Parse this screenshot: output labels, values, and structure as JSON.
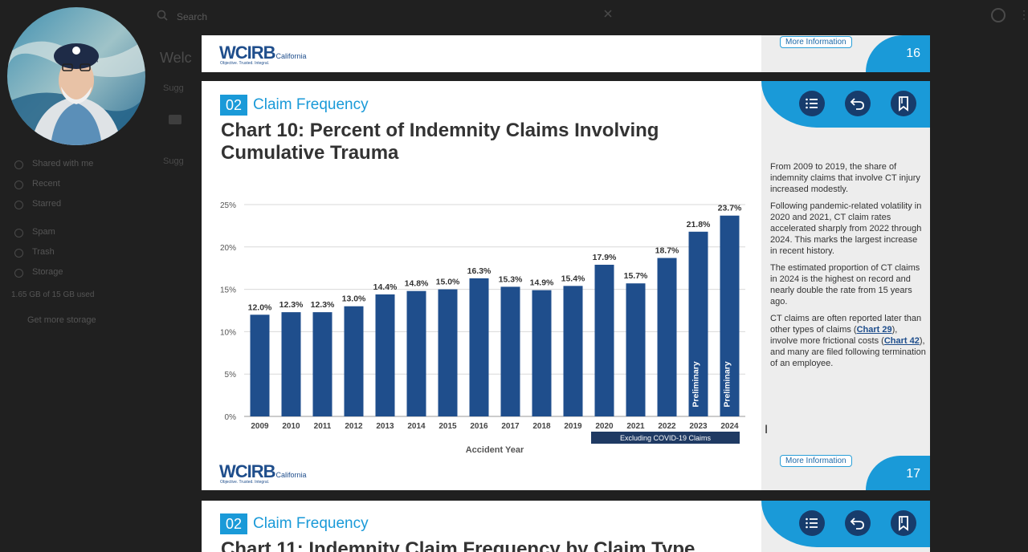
{
  "background_app": {
    "search_placeholder": "Search",
    "welcome": "Welc",
    "misc_1": "Sugg",
    "misc_2": "Sugg",
    "sidebar": [
      "Shared with me",
      "Recent",
      "Starred",
      "Spam",
      "Trash",
      "Storage"
    ],
    "storage_text": "1.65 GB of 15 GB used",
    "get_more": "Get more storage"
  },
  "brand": {
    "name": "WCIRB",
    "region": "California",
    "tagline": "Objective. Trusted. Integral."
  },
  "page16": {
    "more_info": "More Information",
    "page_number": "16"
  },
  "page17": {
    "section_number": "02",
    "section_title": "Claim Frequency",
    "title": "Chart 10: Percent of Indemnity Claims Involving Cumulative Trauma",
    "more_info": "More Information",
    "page_number": "17",
    "nav": [
      "list-icon",
      "back-icon",
      "bookmark-icon"
    ],
    "side_paragraphs": {
      "p1": "From 2009 to 2019, the share of indemnity claims that involve CT injury increased modestly.",
      "p2": "Following pandemic-related volatility in 2020 and 2021, CT claim rates accelerated sharply from 2022 through 2024. This marks the largest increase in recent history.",
      "p3": "The estimated proportion of CT claims in 2024 is the highest on record and nearly double the rate from 15 years ago.",
      "p4a": "CT claims are often reported later than other types of claims (",
      "p4_link1": "Chart 29",
      "p4b": "), involve more frictional costs (",
      "p4_link2": "Chart 42",
      "p4c": "), and many are filed following termination of an employee."
    }
  },
  "page18": {
    "section_number": "02",
    "section_title": "Claim Frequency",
    "title": "Chart 11: Indemnity Claim Frequency by Claim Type"
  },
  "colors": {
    "bar": "#1f4e8c",
    "accent": "#1a9ad8",
    "nav_button": "#173c6c",
    "covid_band": "#1f3a63"
  },
  "chart_data": {
    "type": "bar",
    "title": "Chart 10: Percent of Indemnity Claims Involving Cumulative Trauma",
    "xlabel": "Accident Year",
    "ylabel": "",
    "categories": [
      "2009",
      "2010",
      "2011",
      "2012",
      "2013",
      "2014",
      "2015",
      "2016",
      "2017",
      "2018",
      "2019",
      "2020",
      "2021",
      "2022",
      "2023",
      "2024"
    ],
    "values": [
      12.0,
      12.3,
      12.3,
      13.0,
      14.4,
      14.8,
      15.0,
      16.3,
      15.3,
      14.9,
      15.4,
      17.9,
      15.7,
      18.7,
      21.8,
      23.7
    ],
    "labels": [
      "12.0%",
      "12.3%",
      "12.3%",
      "13.0%",
      "14.4%",
      "14.8%",
      "15.0%",
      "16.3%",
      "15.3%",
      "14.9%",
      "15.4%",
      "17.9%",
      "15.7%",
      "18.7%",
      "21.8%",
      "23.7%"
    ],
    "ylim": [
      0,
      25
    ],
    "yticks": [
      "0%",
      "5%",
      "10%",
      "15%",
      "20%",
      "25%"
    ],
    "ytick_values": [
      0,
      5,
      10,
      15,
      20,
      25
    ],
    "grid": true,
    "bar_annotations": {
      "2023": "Preliminary",
      "2024": "Preliminary"
    },
    "bracket": {
      "from": "2020",
      "to": "2024",
      "label": "Excluding COVID-19 Claims"
    }
  }
}
